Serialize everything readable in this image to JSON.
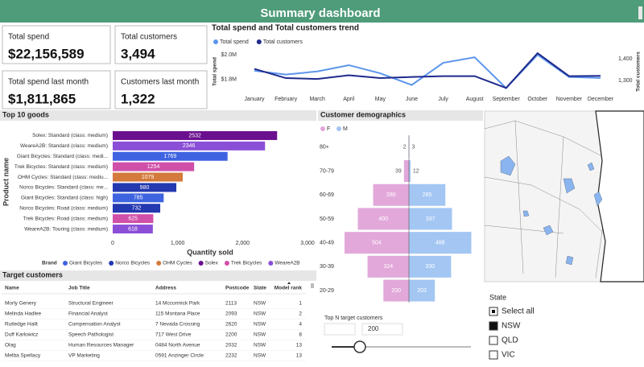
{
  "header": {
    "title": "Summary dashboard"
  },
  "cards": [
    {
      "label": "Total spend",
      "value": "$22,156,589"
    },
    {
      "label": "Total customers",
      "value": "3,494"
    },
    {
      "label": "Total spend last month",
      "value": "$1,811,865"
    },
    {
      "label": "Customers last month",
      "value": "1,322"
    }
  ],
  "chart_data": [
    {
      "type": "line",
      "title": "Total spend and Total customers trend",
      "categories": [
        "January",
        "February",
        "March",
        "April",
        "May",
        "June",
        "July",
        "August",
        "September",
        "October",
        "November",
        "December"
      ],
      "y_label": "Total spend",
      "y2_label": "Total customers",
      "ylim": [
        1700000,
        2040000
      ],
      "yticks": [
        {
          "value": 1800000,
          "label": "$1.8M"
        },
        {
          "value": 2000000,
          "label": "$2.0M"
        }
      ],
      "y2lim": [
        1250,
        1440
      ],
      "y2ticks": [
        {
          "value": 1300,
          "label": "1,300"
        },
        {
          "value": 1400,
          "label": "1,400"
        }
      ],
      "series": [
        {
          "name": "Total spend",
          "color": "#5b95ec",
          "values": [
            1871000,
            1840000,
            1865000,
            1916000,
            1850000,
            1755000,
            1935000,
            1980000,
            1730000,
            2000000,
            1820000,
            1811865
          ]
        },
        {
          "name": "Total customers",
          "color": "#1f2a8c",
          "axis": "y2",
          "values": [
            1354,
            1312,
            1308,
            1325,
            1312,
            1317,
            1321,
            1321,
            1267,
            1425,
            1321,
            1322
          ]
        }
      ]
    },
    {
      "type": "hbar",
      "title": "Top 10 goods",
      "y_label": "Product name",
      "x_label": "Quantity sold",
      "categories": [
        "Solex: Standard (class: medium)",
        "WeareA2B: Standard (class: medium)",
        "Giant Bicycles: Standard (class: medi...",
        "Trek Bicycles: Standard (class: medium)",
        "OHM Cycles: Standard (class: mediu...",
        "Norco Bicycles: Standard (class: me...",
        "Giant Bicycles: Standard (class: high)",
        "Norco Bicycles: Road (class: medium)",
        "Trek Bicycles: Road (class: medium)",
        "WeareA2B: Touring (class: medium)"
      ],
      "values": [
        2532,
        2346,
        1769,
        1254,
        1079,
        980,
        785,
        732,
        625,
        618
      ],
      "colors": [
        "#6a0f8e",
        "#8a4fd6",
        "#3e63e0",
        "#d04fa8",
        "#d37a3c",
        "#2438b0",
        "#3e63e0",
        "#2438b0",
        "#d04fa8",
        "#8a4fd6"
      ],
      "xlim": [
        0,
        3000
      ],
      "xticks": [
        0,
        {
          "value": 1000,
          "label": "1,000"
        },
        {
          "value": 2000,
          "label": "2,000"
        },
        {
          "value": 3000,
          "label": "3,000"
        }
      ],
      "legend": {
        "title": "Brand",
        "items": [
          {
            "name": "Giant Bicycles",
            "color": "#3e63e0"
          },
          {
            "name": "Norco Bicycles",
            "color": "#2438b0"
          },
          {
            "name": "OHM Cycles",
            "color": "#d37a3c"
          },
          {
            "name": "Solex",
            "color": "#6a0f8e"
          },
          {
            "name": "Trek Bicycles",
            "color": "#d04fa8"
          },
          {
            "name": "WeareA2B",
            "color": "#8a4fd6"
          }
        ]
      }
    },
    {
      "type": "pyramid",
      "title": "Customer demographics",
      "categories": [
        "80+",
        "70-79",
        "60-69",
        "50-59",
        "40-49",
        "30-39",
        "20-29"
      ],
      "xlim": [
        -630,
        630
      ],
      "series": [
        {
          "name": "F",
          "color": "#e2a8da",
          "values": [
            2,
            39,
            280,
            400,
            504,
            324,
            200
          ]
        },
        {
          "name": "M",
          "color": "#a3c6f3",
          "values": [
            3,
            12,
            285,
            337,
            488,
            330,
            203
          ]
        }
      ]
    }
  ],
  "table": {
    "title": "Target customers",
    "columns": [
      "Name",
      "Job Title",
      "Address",
      "Postcode",
      "State",
      "Model rank"
    ],
    "rows": [
      [
        "Morly Genery",
        "Structural Engineer",
        "14 Mccormick Park",
        2113,
        "NSW",
        1
      ],
      [
        "Melinda Hadlee",
        "Financial Analyst",
        "115 Montana Place",
        2093,
        "NSW",
        2
      ],
      [
        "Rutledge Hallt",
        "Compensation Analyst",
        "7 Nevada Crossing",
        2620,
        "NSW",
        4
      ],
      [
        "Duff Karlowicz",
        "Speech Pathologist",
        "717 West Drive",
        2200,
        "NSW",
        8
      ],
      [
        "Olag",
        "Human Resources Manager",
        "0484 North Avenue",
        2032,
        "NSW",
        13
      ],
      [
        "Melba Spellacy",
        "VP Marketing",
        "0591 Anzinger Circle",
        2232,
        "NSW",
        13
      ]
    ]
  },
  "top_n": {
    "label": "Top N target customers",
    "value": 200
  },
  "state_slicer": {
    "title": "State",
    "items": [
      {
        "label": "Select all",
        "state": "partial"
      },
      {
        "label": "NSW",
        "state": "checked"
      },
      {
        "label": "QLD",
        "state": "unchecked"
      },
      {
        "label": "VIC",
        "state": "unchecked"
      }
    ]
  }
}
